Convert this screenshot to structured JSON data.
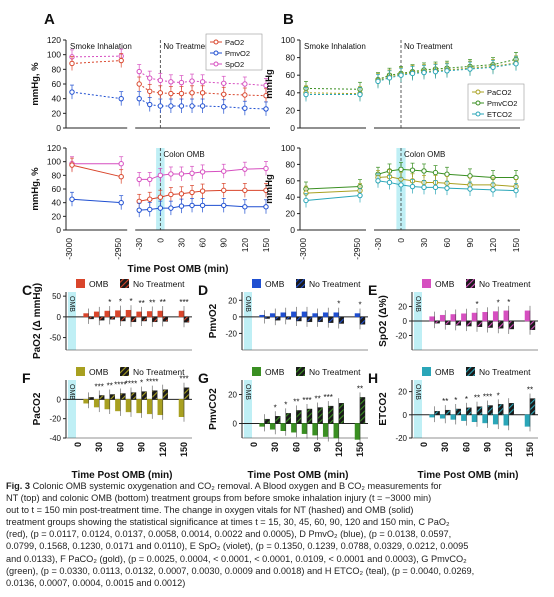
{
  "colors": {
    "pao2": "#d9452b",
    "pmvo2": "#1f4fd1",
    "spo2": "#d64fc0",
    "paco2": "#a8a020",
    "pmvco2": "#3a8f22",
    "etco2": "#2aa6b8",
    "omb_band": "#bfeff5"
  },
  "panel_letters": [
    "A",
    "B",
    "C",
    "D",
    "E",
    "F",
    "G",
    "H"
  ],
  "panel_A": {
    "letter": "A",
    "top": {
      "ylabel": "mmHg, %",
      "yticks": [
        "120",
        "100",
        "80",
        "60",
        "40",
        "20",
        "0"
      ],
      "ylim": [
        0,
        120
      ],
      "region_left": "Smoke Inhalation",
      "region_right": "No Treatment",
      "legend": [
        "PaO2",
        "PmvO2",
        "SpO2"
      ],
      "series": [
        {
          "name": "SpO2",
          "color": "#d64fc0",
          "pre": [
            [
              -3000,
              97
            ],
            [
              -2950,
              98
            ]
          ],
          "post": [
            [
              -30,
              77
            ],
            [
              -15,
              68
            ],
            [
              0,
              65
            ],
            [
              15,
              63
            ],
            [
              30,
              62
            ],
            [
              45,
              64
            ],
            [
              60,
              63
            ],
            [
              90,
              61
            ],
            [
              120,
              60
            ],
            [
              150,
              58
            ]
          ]
        },
        {
          "name": "PaO2",
          "color": "#d9452b",
          "pre": [
            [
              -3000,
              88
            ],
            [
              -2950,
              92
            ]
          ],
          "post": [
            [
              -30,
              60
            ],
            [
              -15,
              50
            ],
            [
              0,
              48
            ],
            [
              15,
              47
            ],
            [
              30,
              47
            ],
            [
              45,
              48
            ],
            [
              60,
              48
            ],
            [
              90,
              46
            ],
            [
              120,
              45
            ],
            [
              150,
              44
            ]
          ]
        },
        {
          "name": "PmvO2",
          "color": "#1f4fd1",
          "pre": [
            [
              -3000,
              49
            ],
            [
              -2950,
              40
            ]
          ],
          "post": [
            [
              -30,
              40
            ],
            [
              -15,
              32
            ],
            [
              0,
              30
            ],
            [
              15,
              30
            ],
            [
              30,
              30
            ],
            [
              45,
              30
            ],
            [
              60,
              30
            ],
            [
              90,
              29
            ],
            [
              120,
              27
            ],
            [
              150,
              26
            ]
          ]
        }
      ]
    },
    "bottom": {
      "ylabel": "mmHg, %",
      "yticks": [
        "120",
        "100",
        "80",
        "60",
        "40",
        "20",
        "0"
      ],
      "ylim": [
        0,
        120
      ],
      "region_right": "Colon OMB",
      "series": [
        {
          "name": "SpO2",
          "color": "#d64fc0",
          "pre": [
            [
              -3000,
              97
            ],
            [
              -2950,
              97
            ]
          ],
          "post": [
            [
              -30,
              74
            ],
            [
              -15,
              74
            ],
            [
              0,
              80
            ],
            [
              15,
              82
            ],
            [
              30,
              82
            ],
            [
              45,
              83
            ],
            [
              60,
              85
            ],
            [
              90,
              86
            ],
            [
              120,
              89
            ],
            [
              150,
              90
            ]
          ]
        },
        {
          "name": "PaO2",
          "color": "#d9452b",
          "pre": [
            [
              -3000,
              95
            ],
            [
              -2950,
              78
            ]
          ],
          "post": [
            [
              -30,
              42
            ],
            [
              -15,
              45
            ],
            [
              0,
              48
            ],
            [
              15,
              52
            ],
            [
              30,
              53
            ],
            [
              45,
              55
            ],
            [
              60,
              57
            ],
            [
              90,
              58
            ],
            [
              120,
              58
            ],
            [
              150,
              58
            ]
          ]
        },
        {
          "name": "PmvO2",
          "color": "#1f4fd1",
          "pre": [
            [
              -3000,
              45
            ],
            [
              -2950,
              40
            ]
          ],
          "post": [
            [
              -30,
              29
            ],
            [
              -15,
              30
            ],
            [
              0,
              32
            ],
            [
              15,
              32
            ],
            [
              30,
              35
            ],
            [
              45,
              36
            ],
            [
              60,
              36
            ],
            [
              90,
              36
            ],
            [
              120,
              34
            ],
            [
              150,
              34
            ]
          ]
        }
      ]
    },
    "xlabel": "Time Post OMB (min)",
    "xticks_pre": [
      "-3000",
      "-2950"
    ],
    "xticks_post": [
      "-30",
      "0",
      "30",
      "60",
      "90",
      "120",
      "150"
    ]
  },
  "panel_B": {
    "letter": "B",
    "top": {
      "ylabel": "mmHg",
      "yticks": [
        "100",
        "80",
        "60",
        "40",
        "20",
        "0"
      ],
      "ylim": [
        0,
        100
      ],
      "region_left": "Smoke Inhalation",
      "region_right": "No Treatment",
      "legend": [
        "PaCO2",
        "PmvCO2",
        "ETCO2"
      ],
      "series": [
        {
          "name": "PmvCO2",
          "color": "#3a8f22",
          "pre": [
            [
              -3000,
              45
            ],
            [
              -2950,
              44
            ]
          ],
          "post": [
            [
              -30,
              55
            ],
            [
              -15,
              60
            ],
            [
              0,
              62
            ],
            [
              15,
              64
            ],
            [
              30,
              66
            ],
            [
              45,
              67
            ],
            [
              60,
              68
            ],
            [
              90,
              70
            ],
            [
              120,
              72
            ],
            [
              150,
              78
            ]
          ]
        },
        {
          "name": "PaCO2",
          "color": "#a8a020",
          "pre": [
            [
              -3000,
              40
            ],
            [
              -2950,
              39
            ]
          ],
          "post": [
            [
              -30,
              54
            ],
            [
              -15,
              58
            ],
            [
              0,
              61
            ],
            [
              15,
              63
            ],
            [
              30,
              64
            ],
            [
              45,
              65
            ],
            [
              60,
              66
            ],
            [
              90,
              68
            ],
            [
              120,
              70
            ],
            [
              150,
              74
            ]
          ]
        },
        {
          "name": "ETCO2",
          "color": "#2aa6b8",
          "pre": [
            [
              -3000,
              38
            ],
            [
              -2950,
              38
            ]
          ],
          "post": [
            [
              -30,
              53
            ],
            [
              -15,
              57
            ],
            [
              0,
              60
            ],
            [
              15,
              62
            ],
            [
              30,
              63
            ],
            [
              45,
              64
            ],
            [
              60,
              65
            ],
            [
              90,
              67
            ],
            [
              120,
              69
            ],
            [
              150,
              73
            ]
          ]
        }
      ]
    },
    "bottom": {
      "ylabel": "mmHg",
      "yticks": [
        "100",
        "80",
        "60",
        "40",
        "20",
        "0"
      ],
      "ylim": [
        0,
        100
      ],
      "region_right": "Colon OMB",
      "series": [
        {
          "name": "PmvCO2",
          "color": "#3a8f22",
          "pre": [
            [
              -3000,
              50
            ],
            [
              -2950,
              53
            ]
          ],
          "post": [
            [
              -30,
              68
            ],
            [
              -15,
              72
            ],
            [
              0,
              74
            ],
            [
              15,
              73
            ],
            [
              30,
              72
            ],
            [
              45,
              70
            ],
            [
              60,
              68
            ],
            [
              90,
              66
            ],
            [
              120,
              64
            ],
            [
              150,
              64
            ]
          ]
        },
        {
          "name": "PaCO2",
          "color": "#a8a020",
          "pre": [
            [
              -3000,
              45
            ],
            [
              -2950,
              48
            ]
          ],
          "post": [
            [
              -30,
              64
            ],
            [
              -15,
              65
            ],
            [
              0,
              62
            ],
            [
              15,
              60
            ],
            [
              30,
              58
            ],
            [
              45,
              58
            ],
            [
              60,
              57
            ],
            [
              90,
              55
            ],
            [
              120,
              55
            ],
            [
              150,
              53
            ]
          ]
        },
        {
          "name": "ETCO2",
          "color": "#2aa6b8",
          "pre": [
            [
              -3000,
              36
            ],
            [
              -2950,
              42
            ]
          ],
          "post": [
            [
              -30,
              60
            ],
            [
              -15,
              58
            ],
            [
              0,
              55
            ],
            [
              15,
              53
            ],
            [
              30,
              52
            ],
            [
              45,
              52
            ],
            [
              60,
              51
            ],
            [
              90,
              50
            ],
            [
              120,
              49
            ],
            [
              150,
              48
            ]
          ]
        }
      ]
    },
    "xlabel": "Time Post OMB (min)",
    "xticks_pre": [
      "-3000",
      "-2950"
    ],
    "xticks_post": [
      "-30",
      "0",
      "30",
      "60",
      "90",
      "120",
      "150"
    ]
  },
  "bars": {
    "xticks": [
      "0",
      "30",
      "60",
      "90",
      "120",
      "150"
    ],
    "xlabel": "Time Post OMB (min)",
    "legend_omb": "OMB",
    "legend_nt": "No Treatment",
    "omb_tag": "OMB",
    "panels": [
      {
        "letter": "C",
        "ylabel": "PaO2 (Δ mmHg)",
        "color": "#d9452b",
        "ylim": [
          -80,
          60
        ],
        "yticks": [
          "50",
          "0",
          "-50"
        ],
        "omb": [
          8,
          12,
          14,
          15,
          16,
          12,
          13,
          14,
          14
        ],
        "nt": [
          -5,
          -8,
          -6,
          -10,
          -12,
          -10,
          -12,
          -11,
          -13
        ],
        "stars": [
          "",
          "",
          "*",
          "*",
          "*",
          "**",
          "**",
          "**",
          "***"
        ]
      },
      {
        "letter": "D",
        "ylabel": "PmvO2",
        "color": "#1f4fd1",
        "ylim": [
          -40,
          30
        ],
        "yticks": [
          "20",
          "0",
          "-20"
        ],
        "omb": [
          2,
          4,
          5,
          6,
          6,
          4,
          5,
          5,
          4
        ],
        "nt": [
          -2,
          -4,
          -3,
          -5,
          -6,
          -6,
          -7,
          -8,
          -9
        ],
        "stars": [
          "",
          "",
          "",
          "",
          "",
          "",
          "",
          "*",
          "*"
        ]
      },
      {
        "letter": "E",
        "ylabel": "SpO2 (Δ%)",
        "color": "#d64fc0",
        "ylim": [
          -40,
          40
        ],
        "yticks": [
          "20",
          "0",
          "-20"
        ],
        "omb": [
          6,
          8,
          9,
          10,
          11,
          12,
          13,
          14,
          14
        ],
        "nt": [
          -3,
          -5,
          -6,
          -7,
          -8,
          -9,
          -10,
          -11,
          -12
        ],
        "stars": [
          "",
          "",
          "",
          "",
          "*",
          "",
          "*",
          "*",
          ""
        ]
      },
      {
        "letter": "F",
        "ylabel": "PaCO2",
        "color": "#a8a020",
        "ylim": [
          -40,
          20
        ],
        "yticks": [
          "0",
          "-20",
          "-40"
        ],
        "omb": [
          -4,
          -8,
          -10,
          -12,
          -13,
          -14,
          -15,
          -16,
          -18
        ],
        "nt": [
          2,
          4,
          5,
          6,
          7,
          8,
          9,
          10,
          12
        ],
        "stars": [
          "",
          "***",
          "**",
          "****",
          "****",
          "*",
          "****",
          "",
          "***"
        ]
      },
      {
        "letter": "G",
        "ylabel": "PmvCO2",
        "color": "#3a8f22",
        "ylim": [
          -10,
          30
        ],
        "yticks": [
          "20",
          "0"
        ],
        "omb": [
          -2,
          -4,
          -5,
          -6,
          -7,
          -8,
          -9,
          -10,
          -11
        ],
        "nt": [
          3,
          5,
          7,
          9,
          10,
          11,
          12,
          14,
          18
        ],
        "stars": [
          "",
          "*",
          "*",
          "**",
          "***",
          "**",
          "***",
          "",
          "**"
        ]
      },
      {
        "letter": "H",
        "ylabel": "ETCO2",
        "color": "#2aa6b8",
        "ylim": [
          -20,
          30
        ],
        "yticks": [
          "20",
          "0",
          "-20"
        ],
        "omb": [
          -2,
          -3,
          -4,
          -5,
          -6,
          -7,
          -8,
          -9,
          -10
        ],
        "nt": [
          3,
          4,
          5,
          6,
          7,
          8,
          9,
          10,
          14
        ],
        "stars": [
          "",
          "**",
          "*",
          "*",
          "**",
          "***",
          "*",
          "",
          "**"
        ]
      }
    ]
  },
  "caption": {
    "label": "Fig. 3",
    "lines": [
      "Colonic OMB systemic oxygenation and CO₂ removal. A Blood oxygen and B CO₂ measurements for",
      "NT (top) and colonic OMB (bottom) treatment groups from before smoke inhalation injury (t = −3000 min)",
      "out to t = 150 min post-treatment time. The change in oxygen vitals for NT (hashed) and OMB (solid)",
      "treatment groups showing the statistical significance at times t = 15, 30, 45, 60, 90, 120 and 150 min, C PaO₂",
      "(red), (p = 0.0117, 0.0124, 0.0137, 0.0058, 0.0014, 0.0022 and 0.0005), D PmvO₂ (blue), (p = 0.0138, 0.0597,",
      "0.0799, 0.1568, 0.1230, 0.0171 and 0.0110), E SpO₂ (violet), (p = 0.1350, 0.1239, 0.0788, 0.0329, 0.0212, 0.0095",
      "and 0.0133), F PaCO₂ (gold), (p = 0.0025, 0.0004, < 0.0001, < 0.0001, 0.0109, < 0.0001 and 0.0003), G PmvCO₂",
      "(green), (p = 0.0330, 0.0113, 0.0132, 0.0007, 0.0030, 0.0009 and 0.0018) and H ETCO₂ (teal), (p = 0.0040, 0.0269,",
      "0.0136, 0.0007, 0.0004, 0.0015 and 0.0012)"
    ]
  },
  "chart_data": [
    {
      "type": "line",
      "panel": "A-top",
      "title": "No Treatment",
      "ylabel": "mmHg, %",
      "xlabel": "Time Post OMB (min)",
      "ylim": [
        0,
        120
      ],
      "series": [
        {
          "name": "PaO2"
        },
        {
          "name": "PmvO2"
        },
        {
          "name": "SpO2"
        }
      ]
    },
    {
      "type": "line",
      "panel": "A-bottom",
      "title": "Colon OMB",
      "ylabel": "mmHg, %",
      "xlabel": "Time Post OMB (min)",
      "ylim": [
        0,
        120
      ]
    },
    {
      "type": "line",
      "panel": "B-top",
      "title": "No Treatment",
      "ylabel": "mmHg",
      "xlabel": "Time Post OMB (min)",
      "ylim": [
        0,
        100
      ],
      "series": [
        {
          "name": "PaCO2"
        },
        {
          "name": "PmvCO2"
        },
        {
          "name": "ETCO2"
        }
      ]
    },
    {
      "type": "line",
      "panel": "B-bottom",
      "title": "Colon OMB",
      "ylabel": "mmHg",
      "xlabel": "Time Post OMB (min)",
      "ylim": [
        0,
        100
      ]
    },
    {
      "type": "bar",
      "panel": "C-H",
      "categories": [
        "0",
        "30",
        "60",
        "90",
        "120",
        "150"
      ],
      "xlabel": "Time Post OMB (min)"
    }
  ]
}
